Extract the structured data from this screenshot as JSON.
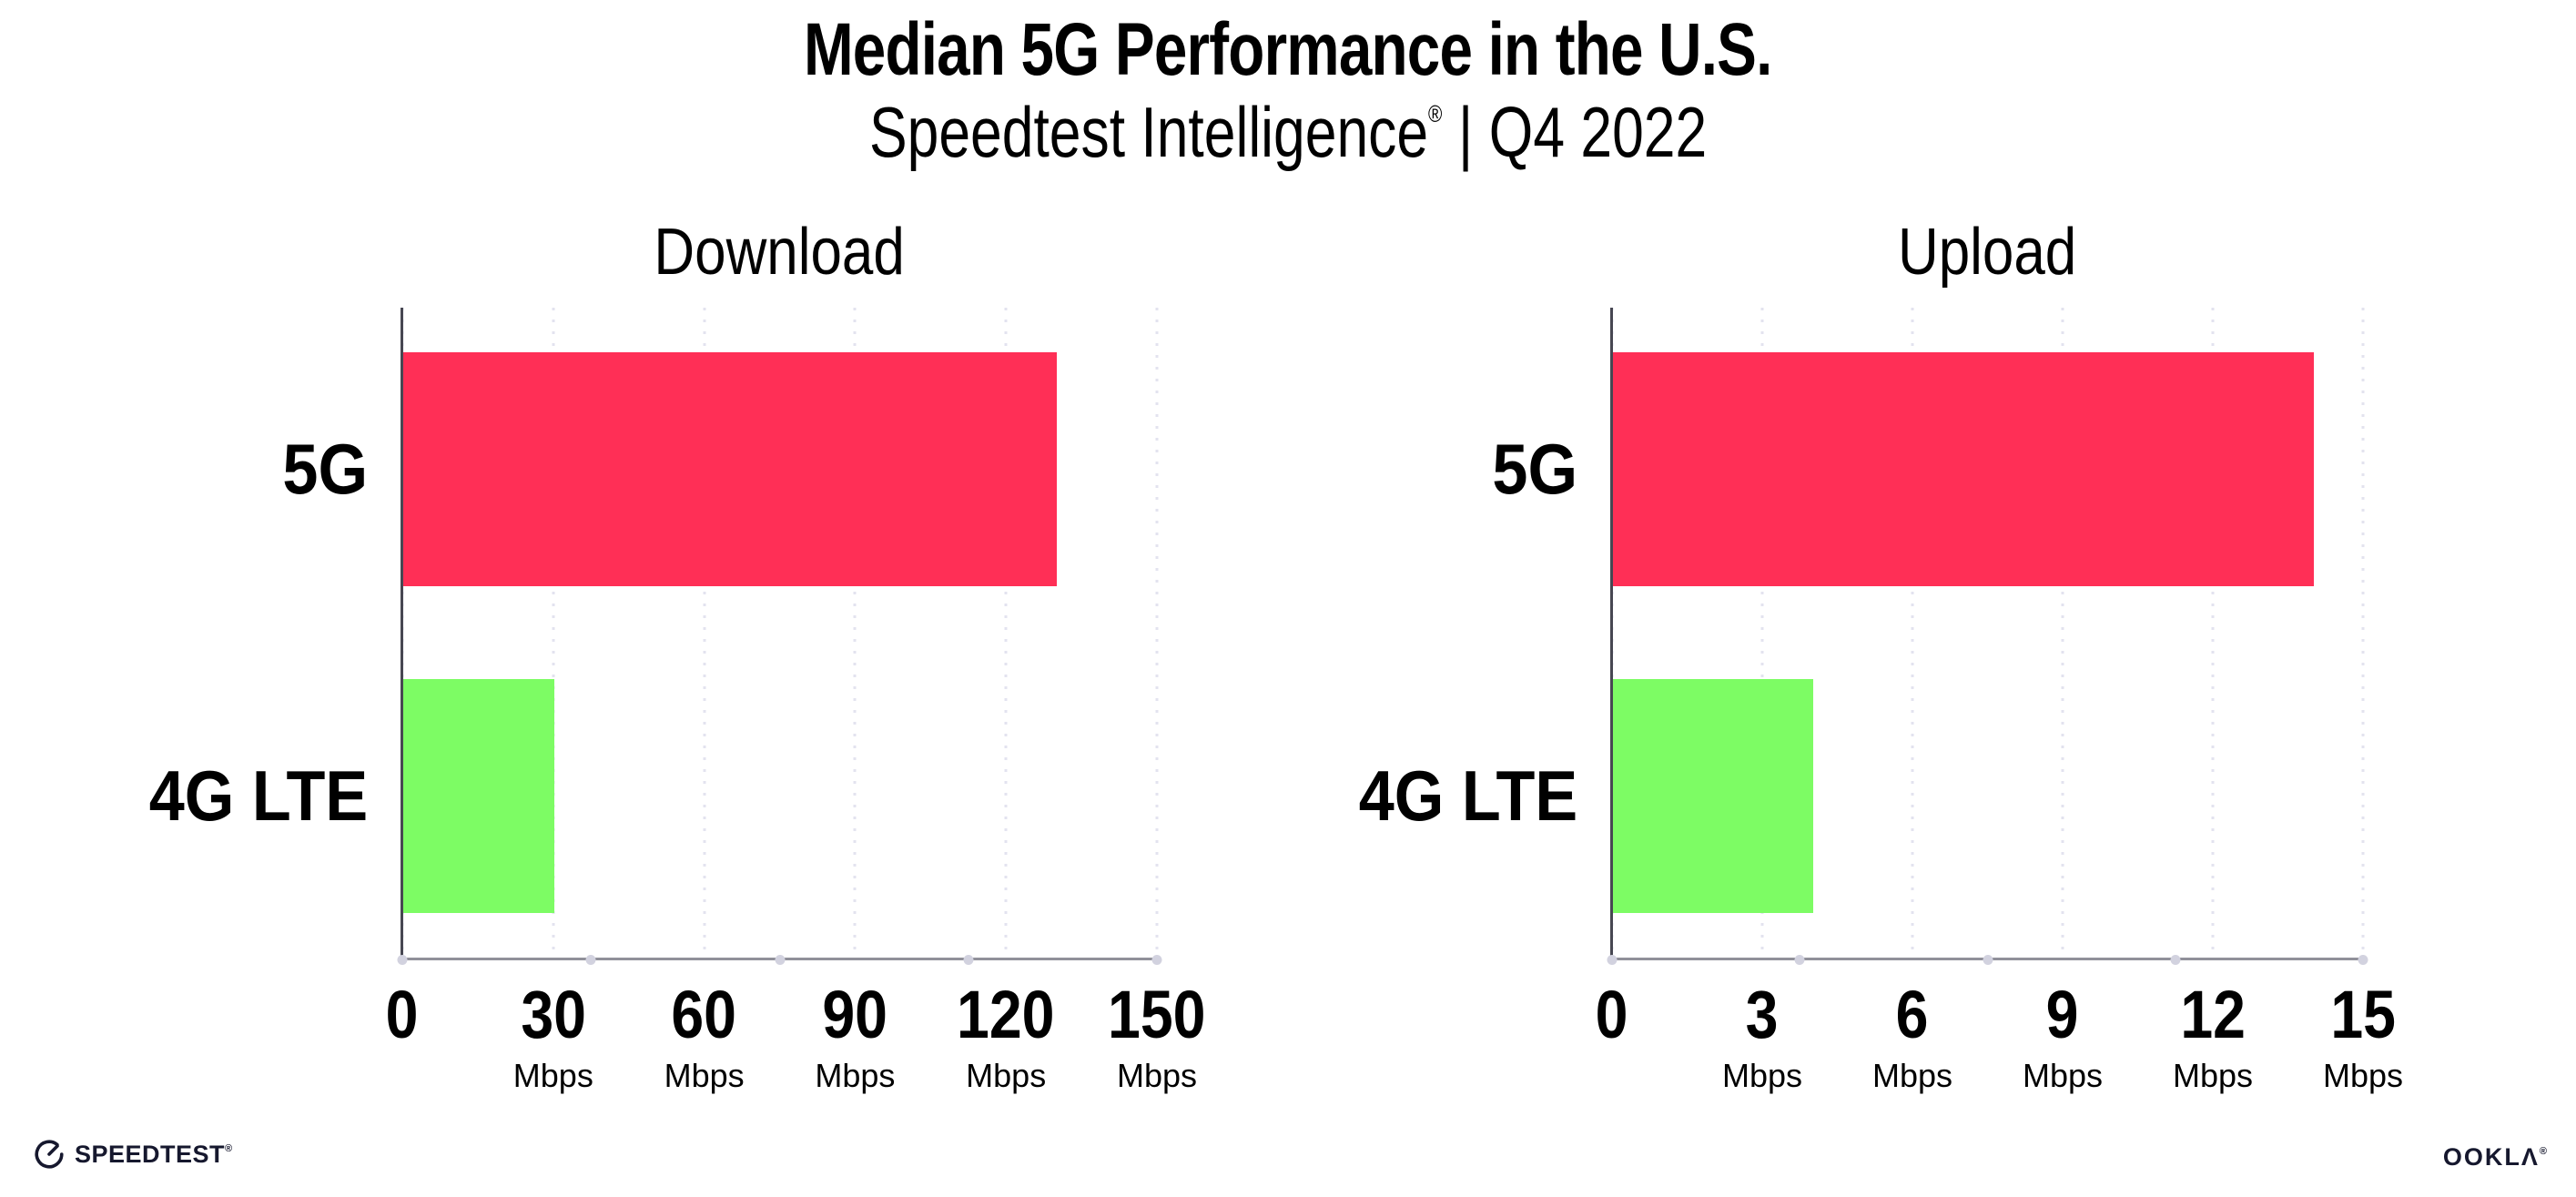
{
  "title": "Median 5G Performance in the U.S.",
  "subtitle": {
    "brand": "Speedtest Intelligence",
    "registered": "®",
    "separator": "|",
    "period": "Q4 2022"
  },
  "colors": {
    "bar_5g": "#FF2F56",
    "bar_4g": "#7DFC64",
    "axis_y": "#474752",
    "axis_x": "#90909a",
    "gridline": "#e3e3ef",
    "text": "#000000",
    "logo": "#16182e"
  },
  "chart_data": [
    {
      "type": "bar",
      "orientation": "horizontal",
      "title": "Download",
      "categories": [
        "5G",
        "4G LTE"
      ],
      "values": [
        130,
        30
      ],
      "unit": "Mbps",
      "xlim": [
        0,
        150
      ],
      "grid": "dotted-vertical",
      "legend": "none",
      "bar_colors": [
        "#FF2F56",
        "#7DFC64"
      ],
      "tick_labels": [
        {
          "label": "0"
        },
        {
          "label": "30",
          "unit": "Mbps"
        },
        {
          "label": "60",
          "unit": "Mbps"
        },
        {
          "label": "90",
          "unit": "Mbps"
        },
        {
          "label": "120",
          "unit": "Mbps"
        },
        {
          "label": "150",
          "unit": "Mbps"
        }
      ]
    },
    {
      "type": "bar",
      "orientation": "horizontal",
      "title": "Upload",
      "categories": [
        "5G",
        "4G LTE"
      ],
      "values": [
        14,
        4
      ],
      "unit": "Mbps",
      "xlim": [
        0,
        15
      ],
      "grid": "dotted-vertical",
      "legend": "none",
      "bar_colors": [
        "#FF2F56",
        "#7DFC64"
      ],
      "tick_labels": [
        {
          "label": "0"
        },
        {
          "label": "3",
          "unit": "Mbps"
        },
        {
          "label": "6",
          "unit": "Mbps"
        },
        {
          "label": "9",
          "unit": "Mbps"
        },
        {
          "label": "12",
          "unit": "Mbps"
        },
        {
          "label": "15",
          "unit": "Mbps"
        }
      ]
    }
  ],
  "footer": {
    "speedtest_wordmark": "SPEEDTEST",
    "speedtest_registered": "®",
    "ookla_wordmark": "OOKLΛ",
    "ookla_registered": "®"
  }
}
